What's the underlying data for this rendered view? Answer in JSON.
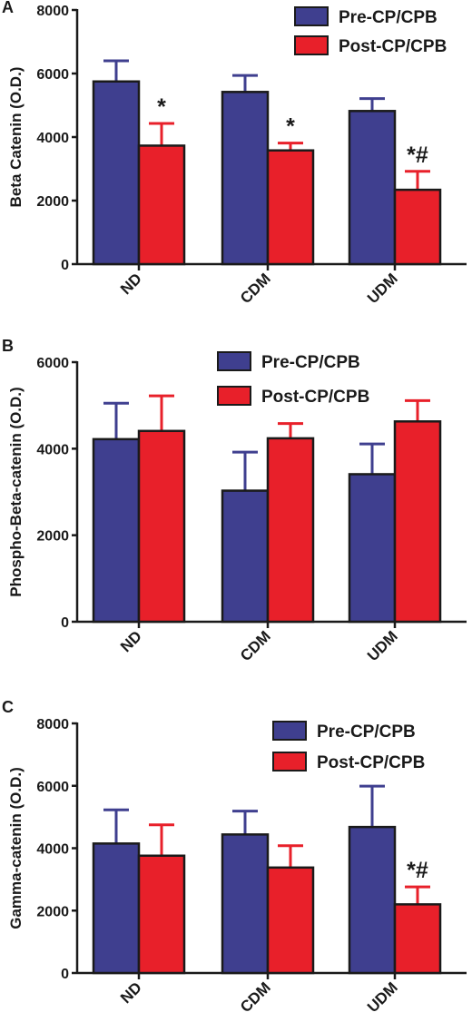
{
  "colors": {
    "pre": "#3f3f8f",
    "post": "#e8202a",
    "axis": "#1a1a1a"
  },
  "chart_data": [
    {
      "panel_letter": "A",
      "type": "bar",
      "ylabel": "Beta Catenin (O.D.)",
      "ylim": [
        0,
        8000
      ],
      "yticks": [
        0,
        2000,
        4000,
        6000,
        8000
      ],
      "categories": [
        "ND",
        "CDM",
        "UDM"
      ],
      "series": [
        {
          "name": "Pre-CP/CPB",
          "color_key": "pre",
          "values": [
            5750,
            5420,
            4820
          ],
          "errors": [
            650,
            520,
            390
          ]
        },
        {
          "name": "Post-CP/CPB",
          "color_key": "post",
          "values": [
            3730,
            3580,
            2340
          ],
          "errors": [
            700,
            230,
            580
          ]
        }
      ],
      "annotations": [
        "*",
        "*",
        "*#"
      ],
      "legend_position": "top-right"
    },
    {
      "panel_letter": "B",
      "type": "bar",
      "ylabel": "Phospho-Beta-catenin (O.D.)",
      "ylim": [
        0,
        6000
      ],
      "yticks": [
        0,
        2000,
        4000,
        6000
      ],
      "categories": [
        "ND",
        "CDM",
        "UDM"
      ],
      "series": [
        {
          "name": "Pre-CP/CPB",
          "color_key": "pre",
          "values": [
            4220,
            3030,
            3410
          ],
          "errors": [
            830,
            890,
            700
          ]
        },
        {
          "name": "Post-CP/CPB",
          "color_key": "post",
          "values": [
            4410,
            4240,
            4630
          ],
          "errors": [
            810,
            340,
            480
          ]
        }
      ],
      "annotations": [
        "",
        "",
        ""
      ],
      "legend_position": "top-center"
    },
    {
      "panel_letter": "C",
      "type": "bar",
      "ylabel": "Gamma-catenin (O.D.)",
      "ylim": [
        0,
        8000
      ],
      "yticks": [
        0,
        2000,
        4000,
        6000,
        8000
      ],
      "categories": [
        "ND",
        "CDM",
        "UDM"
      ],
      "series": [
        {
          "name": "Pre-CP/CPB",
          "color_key": "pre",
          "values": [
            4150,
            4440,
            4680
          ],
          "errors": [
            1080,
            750,
            1310
          ]
        },
        {
          "name": "Post-CP/CPB",
          "color_key": "post",
          "values": [
            3760,
            3380,
            2200
          ],
          "errors": [
            990,
            700,
            560
          ]
        }
      ],
      "annotations": [
        "",
        "",
        "*#"
      ],
      "legend_position": "top-right"
    }
  ]
}
